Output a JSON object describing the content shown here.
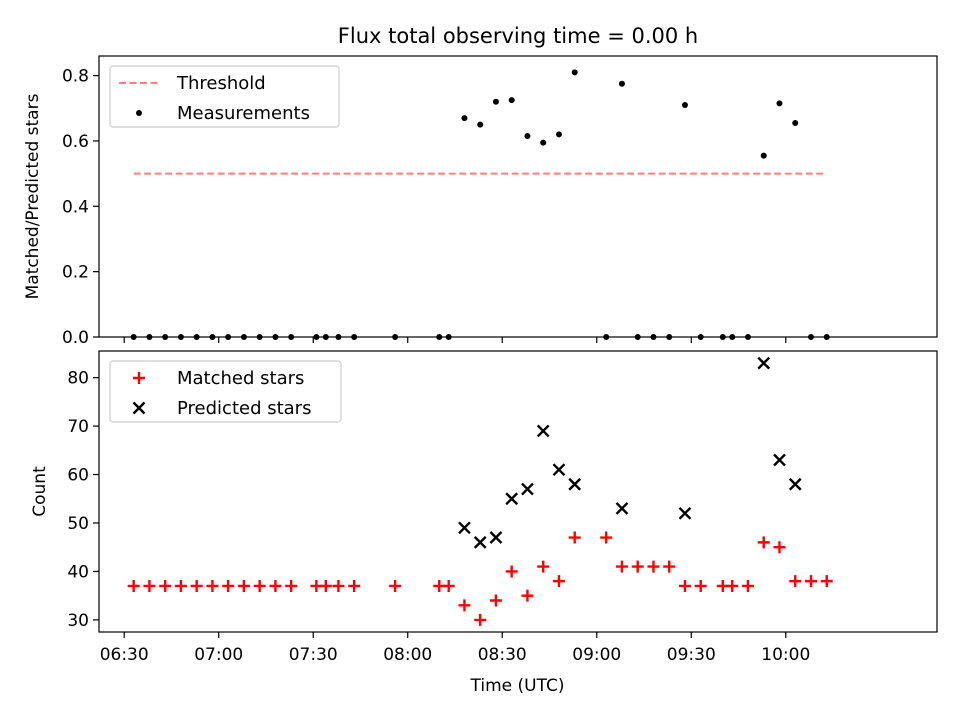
{
  "title": "Flux total observing time = 0.00 h",
  "chart_data": [
    {
      "type": "scatter",
      "ylabel": "Matched/Predicted stars",
      "xlabel": "",
      "xlim": [
        "06:22",
        "10:48"
      ],
      "ylim": [
        0,
        0.86
      ],
      "x_ticks": [
        "06:30",
        "07:00",
        "07:30",
        "08:00",
        "08:30",
        "09:00",
        "09:30",
        "10:00"
      ],
      "y_ticks": [
        0.0,
        0.2,
        0.4,
        0.6,
        0.8
      ],
      "y_tick_labels": [
        "0.0",
        "0.2",
        "0.4",
        "0.6",
        "0.8"
      ],
      "legend": [
        "Threshold",
        "Measurements"
      ],
      "legend_position": "upper left",
      "threshold": {
        "name": "Threshold",
        "value": 0.5,
        "x_start": "06:33",
        "x_end": "10:12",
        "color": "#ff7f7f",
        "style": "dashed"
      },
      "series": [
        {
          "name": "Measurements",
          "color": "#000000",
          "marker": "dot",
          "points": [
            [
              "06:33",
              0.0
            ],
            [
              "06:38",
              0.0
            ],
            [
              "06:43",
              0.0
            ],
            [
              "06:48",
              0.0
            ],
            [
              "06:53",
              0.0
            ],
            [
              "06:58",
              0.0
            ],
            [
              "07:03",
              0.0
            ],
            [
              "07:08",
              0.0
            ],
            [
              "07:13",
              0.0
            ],
            [
              "07:18",
              0.0
            ],
            [
              "07:23",
              0.0
            ],
            [
              "07:31",
              0.0
            ],
            [
              "07:34",
              0.0
            ],
            [
              "07:38",
              0.0
            ],
            [
              "07:43",
              0.0
            ],
            [
              "07:56",
              0.0
            ],
            [
              "08:10",
              0.0
            ],
            [
              "08:13",
              0.0
            ],
            [
              "08:18",
              0.67
            ],
            [
              "08:23",
              0.65
            ],
            [
              "08:28",
              0.72
            ],
            [
              "08:33",
              0.725
            ],
            [
              "08:38",
              0.615
            ],
            [
              "08:43",
              0.595
            ],
            [
              "08:48",
              0.62
            ],
            [
              "08:53",
              0.81
            ],
            [
              "09:03",
              0.0
            ],
            [
              "09:08",
              0.775
            ],
            [
              "09:13",
              0.0
            ],
            [
              "09:18",
              0.0
            ],
            [
              "09:23",
              0.0
            ],
            [
              "09:28",
              0.71
            ],
            [
              "09:33",
              0.0
            ],
            [
              "09:40",
              0.0
            ],
            [
              "09:43",
              0.0
            ],
            [
              "09:48",
              0.0
            ],
            [
              "09:53",
              0.555
            ],
            [
              "09:58",
              0.715
            ],
            [
              "10:03",
              0.655
            ],
            [
              "10:08",
              0.0
            ],
            [
              "10:13",
              0.0
            ]
          ]
        }
      ]
    },
    {
      "type": "scatter",
      "ylabel": "Count",
      "xlabel": "Time (UTC)",
      "xlim": [
        "06:22",
        "10:48"
      ],
      "ylim": [
        27.5,
        85.5
      ],
      "x_ticks": [
        "06:30",
        "07:00",
        "07:30",
        "08:00",
        "08:30",
        "09:00",
        "09:30",
        "10:00"
      ],
      "y_ticks": [
        30,
        40,
        50,
        60,
        70,
        80
      ],
      "y_tick_labels": [
        "30",
        "40",
        "50",
        "60",
        "70",
        "80"
      ],
      "legend": [
        "Matched stars",
        "Predicted stars"
      ],
      "legend_position": "upper left",
      "series": [
        {
          "name": "Matched stars",
          "color": "#ff0000",
          "marker": "plus",
          "points": [
            [
              "06:33",
              37
            ],
            [
              "06:38",
              37
            ],
            [
              "06:43",
              37
            ],
            [
              "06:48",
              37
            ],
            [
              "06:53",
              37
            ],
            [
              "06:58",
              37
            ],
            [
              "07:03",
              37
            ],
            [
              "07:08",
              37
            ],
            [
              "07:13",
              37
            ],
            [
              "07:18",
              37
            ],
            [
              "07:23",
              37
            ],
            [
              "07:31",
              37
            ],
            [
              "07:34",
              37
            ],
            [
              "07:38",
              37
            ],
            [
              "07:43",
              37
            ],
            [
              "07:56",
              37
            ],
            [
              "08:10",
              37
            ],
            [
              "08:13",
              37
            ],
            [
              "08:18",
              33
            ],
            [
              "08:23",
              30
            ],
            [
              "08:28",
              34
            ],
            [
              "08:33",
              40
            ],
            [
              "08:38",
              35
            ],
            [
              "08:43",
              41
            ],
            [
              "08:48",
              38
            ],
            [
              "08:53",
              47
            ],
            [
              "09:03",
              47
            ],
            [
              "09:08",
              41
            ],
            [
              "09:13",
              41
            ],
            [
              "09:18",
              41
            ],
            [
              "09:23",
              41
            ],
            [
              "09:28",
              37
            ],
            [
              "09:33",
              37
            ],
            [
              "09:40",
              37
            ],
            [
              "09:43",
              37
            ],
            [
              "09:48",
              37
            ],
            [
              "09:53",
              46
            ],
            [
              "09:58",
              45
            ],
            [
              "10:03",
              38
            ],
            [
              "10:08",
              38
            ],
            [
              "10:13",
              38
            ]
          ]
        },
        {
          "name": "Predicted stars",
          "color": "#000000",
          "marker": "x",
          "points": [
            [
              "08:18",
              49
            ],
            [
              "08:23",
              46
            ],
            [
              "08:28",
              47
            ],
            [
              "08:33",
              55
            ],
            [
              "08:38",
              57
            ],
            [
              "08:43",
              69
            ],
            [
              "08:48",
              61
            ],
            [
              "08:53",
              58
            ],
            [
              "09:08",
              53
            ],
            [
              "09:28",
              52
            ],
            [
              "09:53",
              83
            ],
            [
              "09:58",
              63
            ],
            [
              "10:03",
              58
            ]
          ]
        }
      ]
    }
  ]
}
